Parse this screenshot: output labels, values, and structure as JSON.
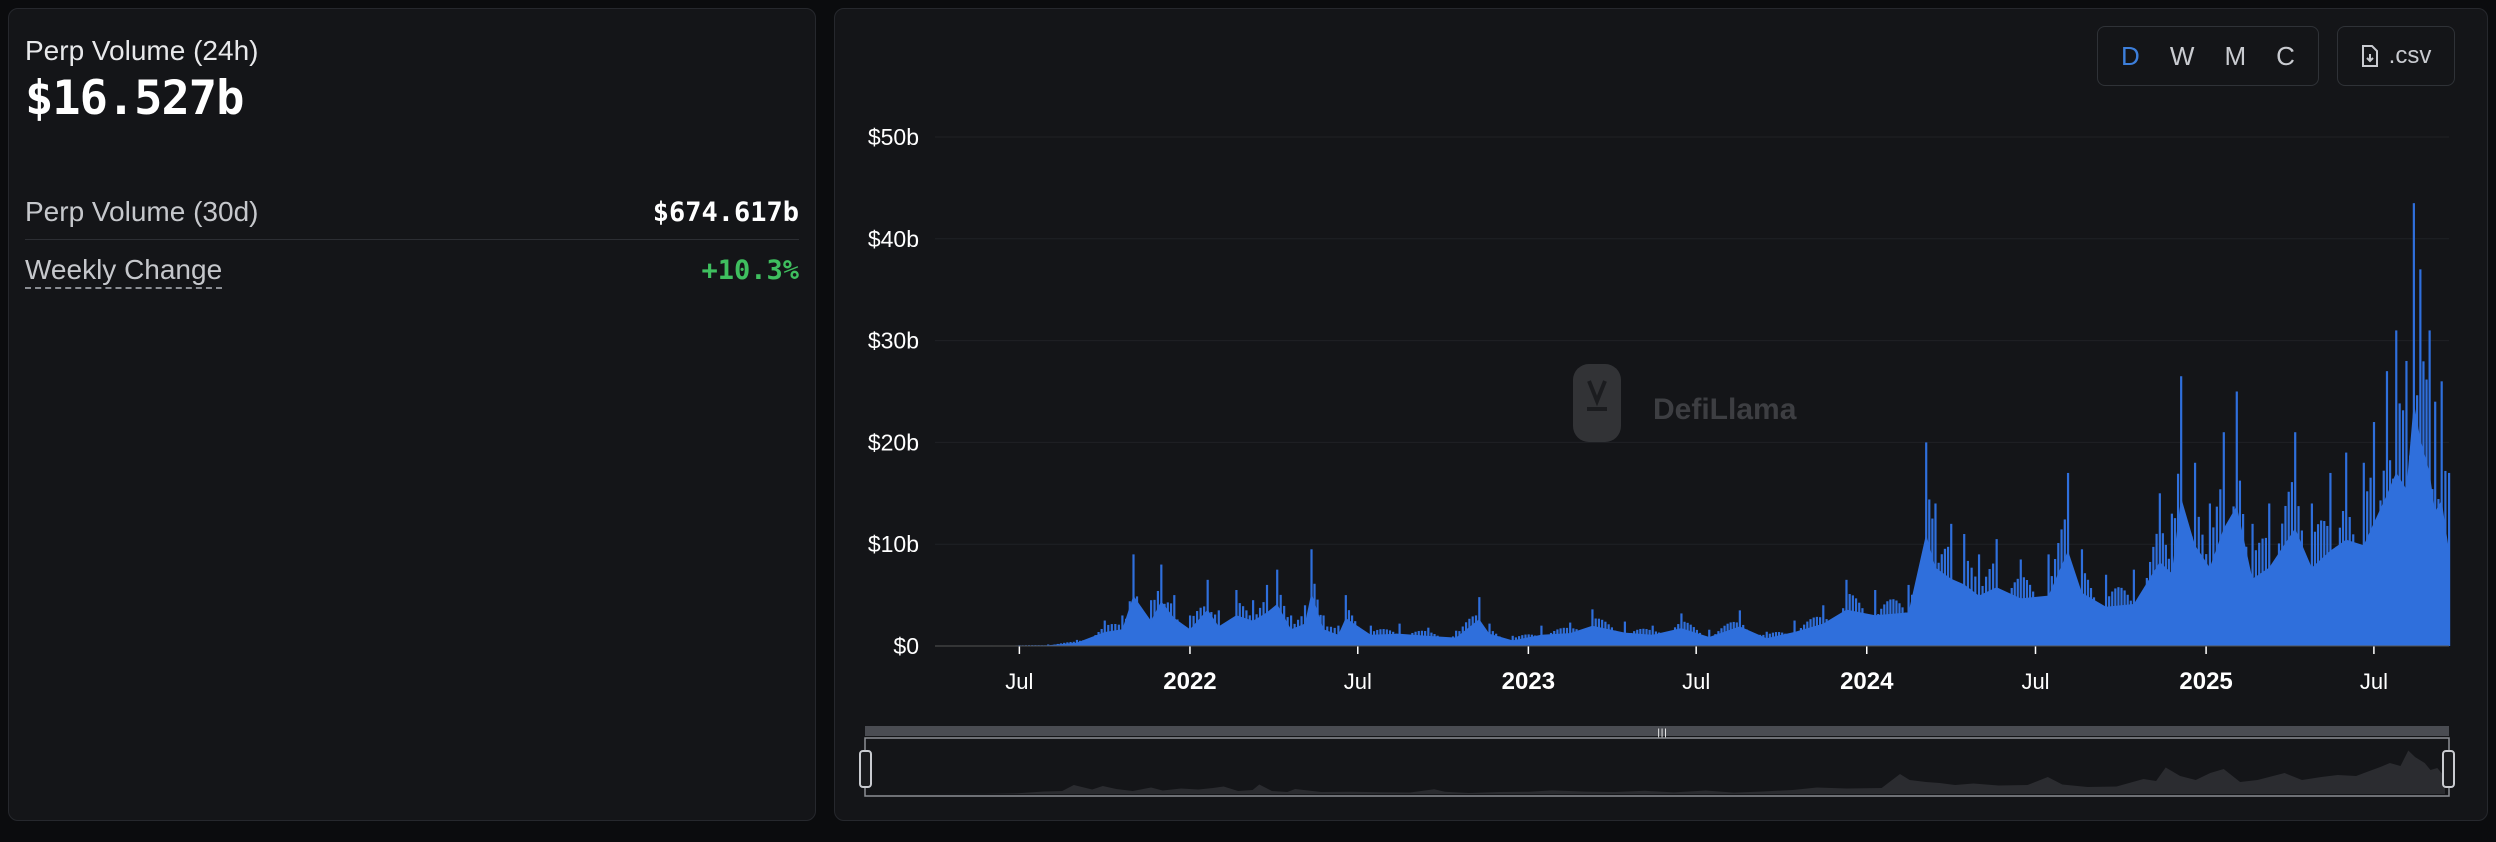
{
  "stats": {
    "perp_24h_label": "Perp Volume (24h)",
    "perp_24h_value": "$16.527b",
    "perp_30d_label": "Perp Volume (30d)",
    "perp_30d_value": "$674.617b",
    "weekly_change_label": "Weekly Change",
    "weekly_change_value": "+10.3%"
  },
  "toolbar": {
    "granularity": [
      "D",
      "W",
      "M",
      "C"
    ],
    "active_granularity": "D",
    "csv_label": ".csv"
  },
  "watermark": "DefiLlama",
  "colors": {
    "series": "#2f6fdc",
    "positive": "#3fbf5f",
    "active": "#3d7fdb"
  },
  "chart_data": {
    "type": "bar",
    "title": "",
    "xlabel": "",
    "ylabel": "",
    "y_tick_labels": [
      "$0",
      "$10b",
      "$20b",
      "$30b",
      "$40b",
      "$50b"
    ],
    "ylim": [
      0,
      50
    ],
    "y_unit": "billions USD",
    "x_tick_labels": [
      "Jul",
      "2022",
      "Jul",
      "2023",
      "Jul",
      "2024",
      "Jul",
      "2025",
      "Jul"
    ],
    "x_range": [
      "2021-04-01",
      "2025-09-20"
    ],
    "grid": true,
    "series": [
      {
        "values": [
          [
            "2021-04-15",
            0.02
          ],
          [
            "2021-06-01",
            0.05
          ],
          [
            "2021-07-01",
            0.08
          ],
          [
            "2021-08-01",
            0.15
          ],
          [
            "2021-09-01",
            0.6
          ],
          [
            "2021-10-01",
            2.5
          ],
          [
            "2021-10-20",
            3.0
          ],
          [
            "2021-11-01",
            9.0
          ],
          [
            "2021-11-20",
            4.5
          ],
          [
            "2021-12-01",
            8.0
          ],
          [
            "2021-12-15",
            5.0
          ],
          [
            "2022-01-01",
            3.0
          ],
          [
            "2022-01-20",
            6.5
          ],
          [
            "2022-02-01",
            3.5
          ],
          [
            "2022-02-20",
            5.5
          ],
          [
            "2022-03-10",
            4.5
          ],
          [
            "2022-03-25",
            6.0
          ],
          [
            "2022-04-05",
            7.5
          ],
          [
            "2022-04-20",
            3.0
          ],
          [
            "2022-05-05",
            4.0
          ],
          [
            "2022-05-12",
            9.5
          ],
          [
            "2022-05-25",
            3.0
          ],
          [
            "2022-06-10",
            2.0
          ],
          [
            "2022-06-18",
            5.0
          ],
          [
            "2022-07-15",
            2.0
          ],
          [
            "2022-08-15",
            2.2
          ],
          [
            "2022-09-15",
            1.8
          ],
          [
            "2022-10-15",
            1.5
          ],
          [
            "2022-11-09",
            4.8
          ],
          [
            "2022-11-20",
            2.2
          ],
          [
            "2022-12-15",
            1.0
          ],
          [
            "2023-01-15",
            2.0
          ],
          [
            "2023-02-15",
            2.3
          ],
          [
            "2023-03-11",
            3.6
          ],
          [
            "2023-04-15",
            2.4
          ],
          [
            "2023-05-15",
            2.0
          ],
          [
            "2023-06-15",
            3.2
          ],
          [
            "2023-07-15",
            1.6
          ],
          [
            "2023-08-17",
            3.5
          ],
          [
            "2023-09-15",
            1.4
          ],
          [
            "2023-10-15",
            2.5
          ],
          [
            "2023-11-15",
            4.0
          ],
          [
            "2023-12-10",
            6.5
          ],
          [
            "2024-01-10",
            5.5
          ],
          [
            "2024-02-15",
            6.0
          ],
          [
            "2024-03-05",
            20.0
          ],
          [
            "2024-03-15",
            14.0
          ],
          [
            "2024-04-01",
            12.0
          ],
          [
            "2024-04-15",
            11.0
          ],
          [
            "2024-05-01",
            9.0
          ],
          [
            "2024-05-20",
            10.5
          ],
          [
            "2024-06-15",
            8.5
          ],
          [
            "2024-07-15",
            9.0
          ],
          [
            "2024-08-05",
            17.0
          ],
          [
            "2024-08-20",
            9.5
          ],
          [
            "2024-09-15",
            7.0
          ],
          [
            "2024-10-15",
            7.5
          ],
          [
            "2024-11-12",
            15.0
          ],
          [
            "2024-11-25",
            13.0
          ],
          [
            "2024-12-05",
            26.5
          ],
          [
            "2024-12-20",
            18.0
          ],
          [
            "2025-01-05",
            14.0
          ],
          [
            "2025-01-20",
            21.0
          ],
          [
            "2025-02-03",
            25.0
          ],
          [
            "2025-02-20",
            12.0
          ],
          [
            "2025-03-10",
            14.0
          ],
          [
            "2025-04-07",
            21.0
          ],
          [
            "2025-04-25",
            14.0
          ],
          [
            "2025-05-15",
            17.0
          ],
          [
            "2025-06-01",
            19.0
          ],
          [
            "2025-06-20",
            18.0
          ],
          [
            "2025-07-01",
            22.0
          ],
          [
            "2025-07-15",
            27.0
          ],
          [
            "2025-07-25",
            31.0
          ],
          [
            "2025-08-05",
            28.0
          ],
          [
            "2025-08-13",
            43.5
          ],
          [
            "2025-08-20",
            37.0
          ],
          [
            "2025-08-30",
            31.0
          ],
          [
            "2025-09-05",
            24.0
          ],
          [
            "2025-09-12",
            26.0
          ],
          [
            "2025-09-20",
            17.0
          ]
        ]
      }
    ]
  }
}
